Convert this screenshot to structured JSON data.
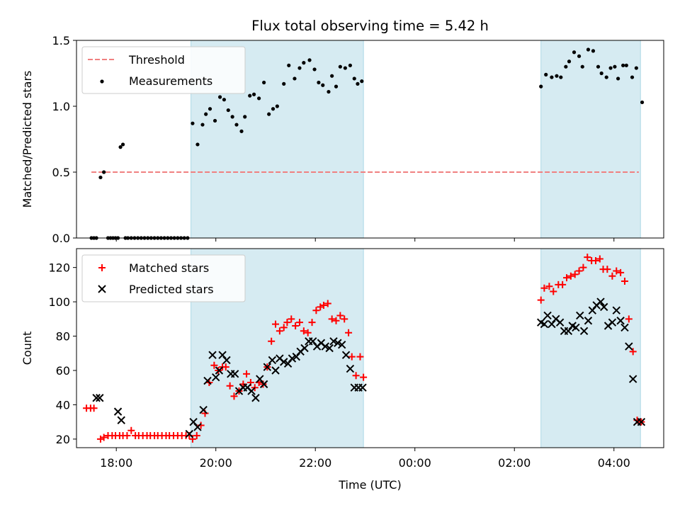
{
  "chart_data": [
    {
      "type": "scatter",
      "title": "Flux total observing time = 5.42 h",
      "xlabel": "",
      "ylabel": "Matched/Predicted stars",
      "xlim": [
        "17:12",
        "05:00"
      ],
      "ylim": [
        0,
        1.5
      ],
      "yticks": [
        0.0,
        0.5,
        1.0,
        1.5
      ],
      "ytick_labels": [
        "0.0",
        "0.5",
        "1.0",
        "1.5"
      ],
      "legend_position": "top-left",
      "shaded_intervals": [
        [
          "19:30",
          "22:58"
        ],
        [
          "02:32",
          "04:32"
        ]
      ],
      "shade_color": "#add8e6",
      "threshold": {
        "name": "Threshold",
        "value": 0.5,
        "x": [
          "17:30",
          "04:30"
        ],
        "color": "#f08080"
      },
      "series": [
        {
          "name": "Measurements",
          "color": "#000000",
          "marker": "dot",
          "x": [
            "17:30",
            "17:33",
            "17:36",
            "17:41",
            "17:45",
            "17:50",
            "17:53",
            "17:56",
            "17:59",
            "18:02",
            "18:05",
            "18:08",
            "18:11",
            "18:14",
            "18:18",
            "18:22",
            "18:26",
            "18:30",
            "18:34",
            "18:38",
            "18:42",
            "18:46",
            "18:50",
            "18:54",
            "18:58",
            "19:02",
            "19:06",
            "19:10",
            "19:14",
            "19:18",
            "19:22",
            "19:26",
            "19:32",
            "19:38",
            "19:44",
            "19:48",
            "19:53",
            "19:59",
            "20:05",
            "20:10",
            "20:15",
            "20:20",
            "20:25",
            "20:31",
            "20:35",
            "20:41",
            "20:46",
            "20:52",
            "20:58",
            "21:04",
            "21:09",
            "21:14",
            "21:22",
            "21:28",
            "21:35",
            "21:41",
            "21:46",
            "21:53",
            "21:59",
            "22:04",
            "22:09",
            "22:16",
            "22:20",
            "22:25",
            "22:30",
            "22:36",
            "22:42",
            "22:47",
            "22:51",
            "22:56",
            "02:32",
            "02:38",
            "02:45",
            "02:51",
            "02:56",
            "03:02",
            "03:06",
            "03:12",
            "03:18",
            "03:22",
            "03:29",
            "03:35",
            "03:41",
            "03:45",
            "03:51",
            "03:56",
            "04:01",
            "04:05",
            "04:11",
            "04:15",
            "04:22",
            "04:27",
            "04:34"
          ],
          "y": [
            0.0,
            0.0,
            0.0,
            0.46,
            0.5,
            0.0,
            0.0,
            0.0,
            0.0,
            0.0,
            0.69,
            0.71,
            0.0,
            0.0,
            0.0,
            0.0,
            0.0,
            0.0,
            0.0,
            0.0,
            0.0,
            0.0,
            0.0,
            0.0,
            0.0,
            0.0,
            0.0,
            0.0,
            0.0,
            0.0,
            0.0,
            0.0,
            0.87,
            0.71,
            0.86,
            0.94,
            0.98,
            0.89,
            1.07,
            1.05,
            0.97,
            0.92,
            0.86,
            0.81,
            0.92,
            1.08,
            1.09,
            1.06,
            1.18,
            0.94,
            0.98,
            1.0,
            1.17,
            1.31,
            1.21,
            1.29,
            1.33,
            1.35,
            1.28,
            1.18,
            1.16,
            1.11,
            1.23,
            1.15,
            1.3,
            1.29,
            1.31,
            1.21,
            1.17,
            1.19,
            1.15,
            1.24,
            1.22,
            1.23,
            1.22,
            1.3,
            1.34,
            1.41,
            1.38,
            1.3,
            1.43,
            1.42,
            1.3,
            1.25,
            1.22,
            1.29,
            1.3,
            1.21,
            1.31,
            1.31,
            1.22,
            1.29,
            1.03
          ]
        }
      ]
    },
    {
      "type": "scatter",
      "title": "",
      "xlabel": "Time (UTC)",
      "ylabel": "Count",
      "xlim": [
        "17:12",
        "05:00"
      ],
      "ylim": [
        15,
        131
      ],
      "xticks": [
        "18:00",
        "20:00",
        "22:00",
        "00:00",
        "02:00",
        "04:00"
      ],
      "yticks": [
        20,
        40,
        60,
        80,
        100,
        120
      ],
      "legend_position": "top-left",
      "shaded_intervals": [
        [
          "19:30",
          "22:58"
        ],
        [
          "02:32",
          "04:32"
        ]
      ],
      "series": [
        {
          "name": "Matched stars",
          "color": "#ff0000",
          "marker": "plus",
          "x": [
            "17:24",
            "17:29",
            "17:33",
            "17:41",
            "17:45",
            "17:50",
            "17:55",
            "17:59",
            "18:04",
            "18:08",
            "18:13",
            "18:18",
            "18:23",
            "18:27",
            "18:32",
            "18:37",
            "18:41",
            "18:46",
            "18:50",
            "18:55",
            "19:00",
            "19:04",
            "19:09",
            "19:14",
            "19:19",
            "19:24",
            "19:28",
            "19:32",
            "19:37",
            "19:42",
            "19:47",
            "19:52",
            "19:58",
            "20:03",
            "20:08",
            "20:12",
            "20:17",
            "20:22",
            "20:28",
            "20:33",
            "20:37",
            "20:42",
            "20:47",
            "20:52",
            "20:57",
            "21:02",
            "21:07",
            "21:12",
            "21:17",
            "21:22",
            "21:26",
            "21:31",
            "21:36",
            "21:41",
            "21:46",
            "21:51",
            "21:56",
            "22:01",
            "22:06",
            "22:10",
            "22:15",
            "22:20",
            "22:25",
            "22:30",
            "22:35",
            "22:40",
            "22:44",
            "22:49",
            "22:54",
            "22:58",
            "02:32",
            "02:36",
            "02:42",
            "02:47",
            "02:53",
            "02:58",
            "03:03",
            "03:08",
            "03:13",
            "03:18",
            "03:23",
            "03:28",
            "03:33",
            "03:38",
            "03:43",
            "03:47",
            "03:52",
            "03:58",
            "04:03",
            "04:08",
            "04:13",
            "04:18",
            "04:23",
            "04:28",
            "04:33"
          ],
          "y": [
            38,
            38,
            38,
            20,
            21,
            22,
            22,
            22,
            22,
            22,
            22,
            25,
            22,
            22,
            22,
            22,
            22,
            22,
            22,
            22,
            22,
            22,
            22,
            22,
            22,
            22,
            22,
            20,
            22,
            28,
            35,
            53,
            63,
            60,
            62,
            62,
            51,
            45,
            48,
            52,
            58,
            53,
            50,
            53,
            52,
            62,
            77,
            87,
            83,
            85,
            88,
            90,
            86,
            88,
            83,
            82,
            88,
            95,
            97,
            98,
            99,
            90,
            89,
            92,
            90,
            82,
            68,
            57,
            68,
            56,
            101,
            108,
            109,
            106,
            110,
            110,
            114,
            115,
            116,
            118,
            120,
            126,
            124,
            124,
            125,
            119,
            119,
            115,
            118,
            117,
            112,
            90,
            71,
            31,
            30
          ]
        },
        {
          "name": "Predicted stars",
          "color": "#000000",
          "marker": "cross",
          "x": [
            "17:36",
            "17:40",
            "18:02",
            "18:06",
            "19:28",
            "19:33",
            "19:38",
            "19:45",
            "19:50",
            "19:56",
            "20:00",
            "20:04",
            "20:08",
            "20:13",
            "20:18",
            "20:23",
            "20:28",
            "20:33",
            "20:38",
            "20:43",
            "20:48",
            "20:53",
            "20:58",
            "21:02",
            "21:08",
            "21:12",
            "21:17",
            "21:22",
            "21:27",
            "21:32",
            "21:37",
            "21:42",
            "21:47",
            "21:52",
            "21:57",
            "22:02",
            "22:07",
            "22:12",
            "22:17",
            "22:22",
            "22:27",
            "22:32",
            "22:37",
            "22:42",
            "22:47",
            "22:52",
            "22:57",
            "02:32",
            "02:36",
            "02:40",
            "02:45",
            "02:50",
            "02:55",
            "03:00",
            "03:05",
            "03:10",
            "03:14",
            "03:19",
            "03:24",
            "03:29",
            "03:34",
            "03:39",
            "03:44",
            "03:48",
            "03:53",
            "03:58",
            "04:03",
            "04:08",
            "04:13",
            "04:18",
            "04:23",
            "04:28",
            "04:33"
          ],
          "y": [
            44,
            44,
            36,
            31,
            23,
            30,
            27,
            37,
            54,
            69,
            56,
            60,
            69,
            66,
            58,
            58,
            48,
            50,
            50,
            48,
            44,
            55,
            52,
            62,
            66,
            60,
            67,
            65,
            64,
            67,
            68,
            71,
            73,
            77,
            77,
            74,
            76,
            74,
            73,
            77,
            76,
            75,
            69,
            61,
            50,
            50,
            50,
            88,
            87,
            92,
            87,
            90,
            88,
            83,
            83,
            86,
            85,
            92,
            83,
            89,
            95,
            98,
            100,
            97,
            86,
            88,
            95,
            89,
            85,
            74,
            55,
            30,
            30
          ]
        }
      ]
    }
  ]
}
